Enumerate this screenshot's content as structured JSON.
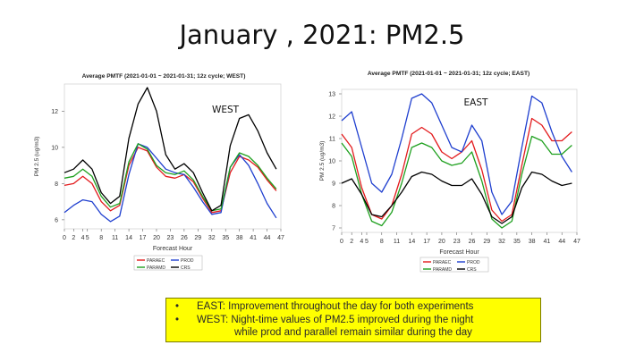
{
  "slide": {
    "title": "January , 2021:  PM2.5",
    "bullets": [
      {
        "marker": "•",
        "text": "EAST:  Improvement throughout the day for both experiments"
      },
      {
        "marker": "•",
        "text": "WEST: Night-time values of PM2.5 improved during the night"
      }
    ],
    "bullet_continuation": "while prod and parallel remain similar during the day"
  },
  "chart_data": [
    {
      "type": "line",
      "title": "Average PMTF (2021-01-01 ~ 2021-01-31; 12z cycle; WEST)",
      "annotation": "WEST",
      "xlabel": "Forecast Hour",
      "ylabel": "PM 2.5 (ug/m3)",
      "x_ticks": [
        0,
        2,
        4,
        5,
        8,
        11,
        14,
        17,
        20,
        23,
        26,
        29,
        32,
        35,
        38,
        41,
        44,
        47
      ],
      "y_ticks": [
        6,
        8,
        10,
        12
      ],
      "xlim": [
        0,
        47
      ],
      "ylim": [
        5.5,
        13.5
      ],
      "x": [
        0,
        2,
        4,
        6,
        8,
        10,
        12,
        14,
        16,
        18,
        20,
        22,
        24,
        26,
        28,
        30,
        32,
        34,
        36,
        38,
        40,
        42,
        44,
        46
      ],
      "series": [
        {
          "name": "PARAEC",
          "color": "#e31a1c",
          "values": [
            7.9,
            8.0,
            8.4,
            8.0,
            7.0,
            6.5,
            6.8,
            9.0,
            10.0,
            9.8,
            8.9,
            8.4,
            8.3,
            8.5,
            8.1,
            7.2,
            6.4,
            6.5,
            8.6,
            9.5,
            9.3,
            8.9,
            8.2,
            7.6
          ]
        },
        {
          "name": "PROD",
          "color": "#1f3fcf",
          "values": [
            6.4,
            6.8,
            7.1,
            7.0,
            6.3,
            5.9,
            6.2,
            8.5,
            10.2,
            10.0,
            9.4,
            8.8,
            8.6,
            8.5,
            7.8,
            7.0,
            6.3,
            6.4,
            8.9,
            9.6,
            9.0,
            8.0,
            6.9,
            6.1
          ]
        },
        {
          "name": "PARAMD",
          "color": "#1ea01e",
          "values": [
            8.3,
            8.4,
            8.8,
            8.4,
            7.3,
            6.7,
            6.9,
            9.2,
            10.2,
            9.9,
            9.0,
            8.6,
            8.5,
            8.7,
            8.2,
            7.3,
            6.5,
            6.6,
            8.9,
            9.7,
            9.5,
            9.0,
            8.3,
            7.7
          ]
        },
        {
          "name": "CRS",
          "color": "#000000",
          "values": [
            8.6,
            8.8,
            9.3,
            8.8,
            7.5,
            6.9,
            7.3,
            10.5,
            12.4,
            13.3,
            12.0,
            9.6,
            8.8,
            9.1,
            8.6,
            7.5,
            6.5,
            6.8,
            10.1,
            11.6,
            11.8,
            10.9,
            9.7,
            8.8
          ]
        }
      ]
    },
    {
      "type": "line",
      "title": "Average PMTF (2021-01-01 ~ 2021-01-31; 12z cycle; EAST)",
      "annotation": "EAST",
      "xlabel": "Forecast Hour",
      "ylabel": "PM 2.5 (ug/m3)",
      "x_ticks": [
        0,
        2,
        4,
        5,
        8,
        11,
        14,
        17,
        20,
        23,
        26,
        29,
        32,
        35,
        38,
        41,
        44,
        47
      ],
      "y_ticks": [
        7,
        8,
        9,
        10,
        11,
        12,
        13
      ],
      "xlim": [
        0,
        47
      ],
      "ylim": [
        6.8,
        13.2
      ],
      "x": [
        0,
        2,
        4,
        6,
        8,
        10,
        12,
        14,
        16,
        18,
        20,
        22,
        24,
        26,
        28,
        30,
        32,
        34,
        36,
        38,
        40,
        42,
        44,
        46
      ],
      "series": [
        {
          "name": "PARAEC",
          "color": "#e31a1c",
          "values": [
            11.2,
            10.6,
            8.8,
            7.6,
            7.4,
            8.0,
            9.4,
            11.2,
            11.5,
            11.2,
            10.4,
            10.1,
            10.4,
            10.9,
            9.6,
            7.8,
            7.3,
            7.6,
            9.8,
            11.9,
            11.6,
            10.9,
            10.9,
            11.3
          ]
        },
        {
          "name": "PROD",
          "color": "#1f3fcf",
          "values": [
            11.8,
            12.2,
            10.6,
            9.0,
            8.6,
            9.4,
            11.0,
            12.8,
            13.0,
            12.6,
            11.6,
            10.6,
            10.4,
            11.6,
            10.9,
            8.6,
            7.6,
            8.2,
            10.6,
            12.9,
            12.6,
            11.3,
            10.2,
            9.5
          ]
        },
        {
          "name": "PARAMD",
          "color": "#1ea01e",
          "values": [
            10.8,
            10.2,
            8.5,
            7.3,
            7.1,
            7.7,
            9.0,
            10.6,
            10.8,
            10.6,
            10.0,
            9.8,
            9.9,
            10.4,
            9.1,
            7.4,
            7.0,
            7.3,
            9.4,
            11.1,
            10.9,
            10.3,
            10.3,
            10.7
          ]
        },
        {
          "name": "CRS",
          "color": "#000000",
          "values": [
            9.0,
            9.2,
            8.5,
            7.6,
            7.5,
            8.0,
            8.6,
            9.3,
            9.5,
            9.4,
            9.1,
            8.9,
            8.9,
            9.2,
            8.5,
            7.5,
            7.2,
            7.5,
            8.8,
            9.5,
            9.4,
            9.1,
            8.9,
            9.0
          ]
        }
      ]
    }
  ]
}
